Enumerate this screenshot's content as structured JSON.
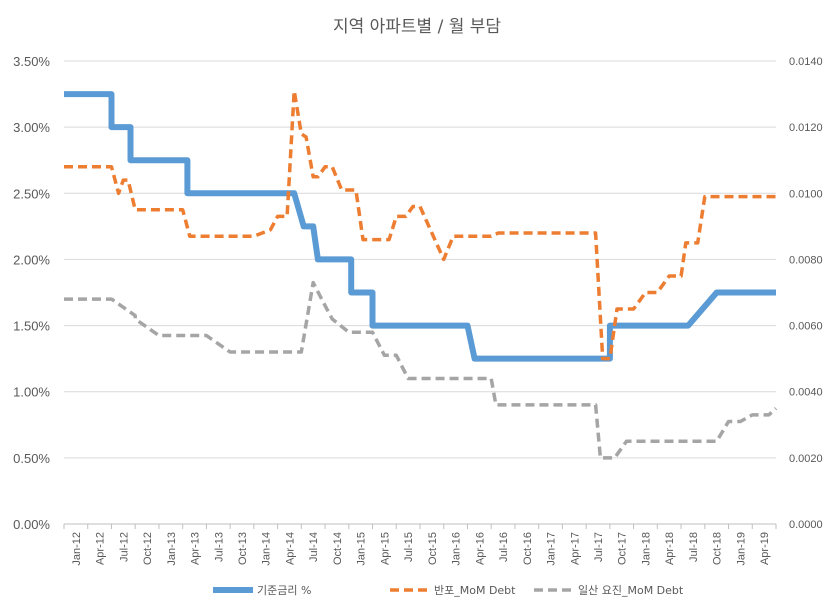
{
  "chart_data": {
    "type": "line",
    "title": "지역 아파트별 / 월 부담",
    "x_labels": [
      "Jan-12",
      "Apr-12",
      "Jul-12",
      "Oct-12",
      "Jan-13",
      "Apr-13",
      "Jul-13",
      "Oct-13",
      "Jan-14",
      "Apr-14",
      "Jul-14",
      "Oct-14",
      "Jan-15",
      "Apr-15",
      "Jul-15",
      "Oct-15",
      "Jan-16",
      "Apr-16",
      "Jul-16",
      "Oct-16",
      "Jan-17",
      "Apr-17",
      "Jul-17",
      "Oct-17",
      "Jan-18",
      "Apr-18",
      "Jul-18",
      "Oct-18",
      "Jan-19",
      "Apr-19"
    ],
    "y_left": {
      "ticks": [
        "0.00%",
        "0.50%",
        "1.00%",
        "1.50%",
        "2.00%",
        "2.50%",
        "3.00%",
        "3.50%"
      ],
      "range": [
        0,
        3.5
      ]
    },
    "y_right": {
      "ticks": [
        "0.0000",
        "0.0020",
        "0.0040",
        "0.0060",
        "0.0080",
        "0.0100",
        "0.0120",
        "0.0140"
      ],
      "range": [
        0,
        0.014
      ]
    },
    "grid": "horizontal",
    "legend_position": "bottom",
    "series": [
      {
        "name": "기준금리 %",
        "axis": "left",
        "style": "solid",
        "color": "#5B9BD5",
        "x": [
          0,
          1,
          2,
          2,
          2.8,
          2.8,
          3.5,
          3.5,
          4.5,
          5.2,
          5.2,
          6.5,
          6.5,
          9.7,
          9.7,
          10.1,
          10.3,
          10.5,
          10.7,
          10.7,
          11,
          12.1,
          12.1,
          13,
          13,
          13.3,
          13.7,
          13.7,
          16,
          16,
          17,
          17.3,
          17.3,
          18,
          18,
          21,
          22,
          22.5,
          22.5,
          23,
          23,
          25,
          26,
          26.2,
          26.3,
          26.3,
          27.5,
          27.5,
          29.5,
          30
        ],
        "y": [
          3.25,
          3.25,
          3.25,
          3.0,
          3.0,
          2.75,
          2.75,
          2.75,
          2.75,
          2.75,
          2.5,
          2.5,
          2.5,
          2.5,
          2.5,
          2.25,
          2.25,
          2.25,
          2.0,
          2.0,
          2.0,
          2.0,
          1.75,
          1.75,
          1.5,
          1.5,
          1.5,
          1.5,
          1.5,
          1.5,
          1.5,
          1.25,
          1.25,
          1.25,
          1.25,
          1.25,
          1.25,
          1.25,
          1.25,
          1.25,
          1.5,
          1.5,
          1.5,
          1.5,
          1.5,
          1.5,
          1.75,
          1.75,
          1.75,
          1.75
        ]
      },
      {
        "name": "반포_MoM Debt",
        "axis": "right",
        "style": "dashed",
        "color": "#ED7D31",
        "x": [
          0,
          1,
          2,
          2,
          2.3,
          2.5,
          2.7,
          3,
          4,
          4.5,
          5,
          5.3,
          5.5,
          6,
          7,
          8,
          8.7,
          9,
          9.4,
          9.7,
          10,
          10.2,
          10.5,
          10.7,
          11,
          11.3,
          11.7,
          12.3,
          12.6,
          13,
          13.4,
          13.7,
          14,
          14.4,
          14.7,
          15,
          16,
          16.4,
          16.8,
          17,
          17.5,
          18,
          18.3,
          19,
          20,
          21,
          22,
          22.4,
          22.7,
          23,
          23.3,
          23.8,
          24,
          24.5,
          25,
          25.5,
          26,
          26.2,
          26.7,
          27,
          27.3,
          28,
          29,
          30
        ],
        "y": [
          0.0108,
          0.0108,
          0.0108,
          0.0108,
          0.01,
          0.0104,
          0.0104,
          0.0095,
          0.0095,
          0.0095,
          0.0095,
          0.0087,
          0.0087,
          0.0087,
          0.0087,
          0.0087,
          0.0089,
          0.0093,
          0.0093,
          0.0131,
          0.0118,
          0.0117,
          0.0105,
          0.0105,
          0.0108,
          0.0108,
          0.0101,
          0.0101,
          0.0086,
          0.0086,
          0.0086,
          0.0086,
          0.0093,
          0.0093,
          0.0096,
          0.0096,
          0.008,
          0.0087,
          0.0087,
          0.0087,
          0.0087,
          0.0087,
          0.0088,
          0.0088,
          0.0088,
          0.0088,
          0.0088,
          0.0088,
          0.005,
          0.005,
          0.0065,
          0.0065,
          0.0065,
          0.007,
          0.007,
          0.0075,
          0.0075,
          0.0085,
          0.0085,
          0.0099,
          0.0099,
          0.0099,
          0.0099,
          0.0099
        ]
      },
      {
        "name": "일산 요진_MoM Debt",
        "axis": "right",
        "style": "dashed",
        "color": "#A5A5A5",
        "x": [
          0,
          1,
          2,
          2,
          3,
          3,
          4,
          5,
          5,
          6,
          7,
          8,
          9,
          9.5,
          10,
          10,
          10.5,
          11,
          11.3,
          12,
          12.5,
          13,
          13.5,
          14,
          14.5,
          15,
          16,
          17,
          18,
          18.2,
          19,
          20,
          21,
          22,
          22.4,
          22.6,
          23,
          23.2,
          23.7,
          24,
          25,
          26,
          26.5,
          27,
          27.2,
          27.5,
          28,
          28.5,
          29,
          29.3,
          29.7,
          30
        ],
        "y": [
          0.0068,
          0.0068,
          0.0068,
          0.0068,
          0.0063,
          0.0062,
          0.0057,
          0.0057,
          0.0057,
          0.0057,
          0.0052,
          0.0052,
          0.0052,
          0.0052,
          0.0052,
          0.0052,
          0.0073,
          0.0066,
          0.0062,
          0.0058,
          0.0058,
          0.0058,
          0.0051,
          0.0051,
          0.0044,
          0.0044,
          0.0044,
          0.0044,
          0.0044,
          0.0036,
          0.0036,
          0.0036,
          0.0036,
          0.0036,
          0.0036,
          0.002,
          0.002,
          0.002,
          0.0025,
          0.0025,
          0.0025,
          0.0025,
          0.0025,
          0.0025,
          0.0025,
          0.0025,
          0.0031,
          0.0031,
          0.0033,
          0.0033,
          0.0033,
          0.0035
        ]
      }
    ]
  }
}
